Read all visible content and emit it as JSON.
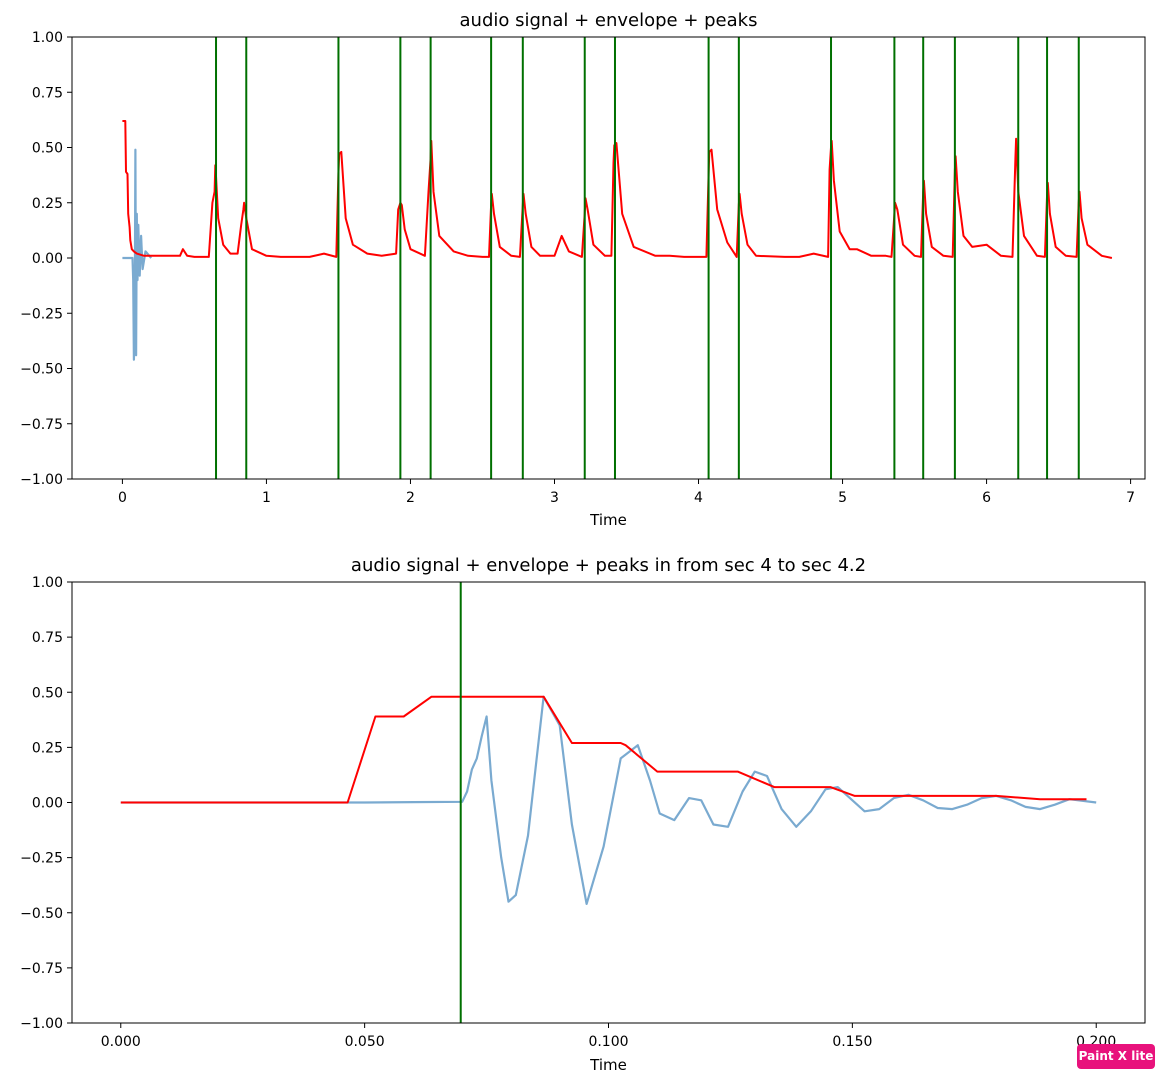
{
  "watermark": "Paint X lite",
  "chart_data": [
    {
      "type": "line",
      "title": "audio signal + envelope + peaks",
      "xlabel": "Time",
      "ylabel": "",
      "xlim": [
        -0.35,
        7.1
      ],
      "ylim": [
        -1.0,
        1.0
      ],
      "xticks": [
        0,
        1,
        2,
        3,
        4,
        5,
        6,
        7
      ],
      "xtick_labels": [
        "0",
        "1",
        "2",
        "3",
        "4",
        "5",
        "6",
        "7"
      ],
      "yticks": [
        1.0,
        0.75,
        0.5,
        0.25,
        0.0,
        -0.25,
        -0.5,
        -0.75,
        -1.0
      ],
      "ytick_labels": [
        "1.00",
        "0.75",
        "0.50",
        "0.25",
        "0.00",
        "−0.25",
        "−0.50",
        "−0.75",
        "−1.00"
      ],
      "grid": false,
      "colors": {
        "signal": "#7aaad0",
        "envelope": "#ff0000",
        "peaks": "#007000"
      },
      "series": [
        {
          "role": "signal",
          "x": [
            0.0,
            0.05,
            0.07,
            0.075,
            0.08,
            0.085,
            0.09,
            0.095,
            0.1,
            0.105,
            0.11,
            0.12,
            0.13,
            0.14,
            0.16,
            0.2
          ],
          "y": [
            0.0,
            0.0,
            0.0,
            -0.1,
            -0.46,
            -0.3,
            0.49,
            -0.44,
            0.2,
            -0.1,
            0.15,
            -0.08,
            0.1,
            -0.05,
            0.03,
            0.0
          ]
        },
        {
          "role": "envelope",
          "x": [
            0.0,
            0.02,
            0.025,
            0.035,
            0.04,
            0.05,
            0.055,
            0.065,
            0.08,
            0.1,
            0.15,
            0.2,
            0.3,
            0.4,
            0.42,
            0.45,
            0.5,
            0.6,
            0.625,
            0.64,
            0.645,
            0.65,
            0.665,
            0.7,
            0.75,
            0.8,
            0.825,
            0.84,
            0.845,
            0.86,
            0.9,
            1.0,
            1.1,
            1.2,
            1.3,
            1.4,
            1.485,
            1.5,
            1.505,
            1.52,
            1.55,
            1.6,
            1.7,
            1.8,
            1.9,
            1.915,
            1.93,
            1.94,
            1.96,
            2.0,
            2.1,
            2.125,
            2.14,
            2.145,
            2.16,
            2.2,
            2.3,
            2.4,
            2.5,
            2.545,
            2.56,
            2.565,
            2.58,
            2.62,
            2.7,
            2.76,
            2.78,
            2.785,
            2.8,
            2.84,
            2.9,
            3.0,
            3.05,
            3.1,
            3.19,
            3.21,
            3.215,
            3.23,
            3.27,
            3.35,
            3.395,
            3.41,
            3.415,
            3.43,
            3.47,
            3.55,
            3.7,
            3.8,
            3.9,
            4.0,
            4.055,
            4.07,
            4.075,
            4.09,
            4.13,
            4.2,
            4.265,
            4.28,
            4.285,
            4.3,
            4.34,
            4.4,
            4.6,
            4.7,
            4.8,
            4.9,
            4.91,
            4.92,
            4.925,
            4.94,
            4.98,
            5.05,
            5.1,
            5.2,
            5.3,
            5.34,
            5.36,
            5.365,
            5.38,
            5.42,
            5.5,
            5.545,
            5.56,
            5.565,
            5.58,
            5.62,
            5.7,
            5.765,
            5.78,
            5.785,
            5.8,
            5.84,
            5.9,
            6.0,
            6.1,
            6.18,
            6.2,
            6.205,
            6.22,
            6.26,
            6.35,
            6.405,
            6.42,
            6.425,
            6.44,
            6.48,
            6.55,
            6.625,
            6.64,
            6.645,
            6.66,
            6.7,
            6.8,
            6.87
          ],
          "y": [
            0.62,
            0.62,
            0.39,
            0.38,
            0.2,
            0.14,
            0.08,
            0.04,
            0.03,
            0.02,
            0.01,
            0.01,
            0.01,
            0.01,
            0.04,
            0.01,
            0.005,
            0.005,
            0.25,
            0.3,
            0.42,
            0.37,
            0.18,
            0.06,
            0.02,
            0.02,
            0.15,
            0.22,
            0.25,
            0.18,
            0.04,
            0.01,
            0.005,
            0.005,
            0.005,
            0.02,
            0.005,
            0.38,
            0.47,
            0.48,
            0.18,
            0.06,
            0.02,
            0.01,
            0.02,
            0.22,
            0.25,
            0.24,
            0.13,
            0.04,
            0.01,
            0.3,
            0.45,
            0.53,
            0.3,
            0.1,
            0.03,
            0.01,
            0.005,
            0.005,
            0.24,
            0.29,
            0.2,
            0.05,
            0.01,
            0.005,
            0.24,
            0.29,
            0.2,
            0.05,
            0.01,
            0.01,
            0.1,
            0.03,
            0.005,
            0.2,
            0.27,
            0.22,
            0.06,
            0.01,
            0.01,
            0.43,
            0.51,
            0.52,
            0.2,
            0.05,
            0.01,
            0.01,
            0.005,
            0.005,
            0.005,
            0.38,
            0.48,
            0.49,
            0.22,
            0.07,
            0.005,
            0.24,
            0.29,
            0.2,
            0.06,
            0.01,
            0.005,
            0.005,
            0.02,
            0.005,
            0.4,
            0.5,
            0.53,
            0.35,
            0.12,
            0.04,
            0.04,
            0.01,
            0.01,
            0.005,
            0.2,
            0.25,
            0.22,
            0.06,
            0.01,
            0.005,
            0.3,
            0.35,
            0.2,
            0.05,
            0.01,
            0.005,
            0.4,
            0.46,
            0.3,
            0.1,
            0.05,
            0.06,
            0.01,
            0.005,
            0.45,
            0.54,
            0.3,
            0.1,
            0.01,
            0.005,
            0.29,
            0.34,
            0.2,
            0.05,
            0.01,
            0.005,
            0.25,
            0.3,
            0.18,
            0.06,
            0.01,
            0.0
          ]
        }
      ],
      "peaks": [
        0.65,
        0.86,
        1.5,
        1.93,
        2.14,
        2.56,
        2.78,
        3.21,
        3.42,
        4.07,
        4.28,
        4.92,
        5.36,
        5.56,
        5.78,
        6.22,
        6.42,
        6.64
      ]
    },
    {
      "type": "line",
      "title": "audio signal + envelope + peaks in from sec 4 to sec 4.2",
      "xlabel": "Time",
      "ylabel": "",
      "xlim": [
        -0.01,
        0.21
      ],
      "ylim": [
        -1.0,
        1.0
      ],
      "xticks": [
        0.0,
        0.05,
        0.1,
        0.15,
        0.2
      ],
      "xtick_labels": [
        "0.000",
        "0.050",
        "0.100",
        "0.150",
        "0.200"
      ],
      "yticks": [
        1.0,
        0.75,
        0.5,
        0.25,
        0.0,
        -0.25,
        -0.5,
        -0.75,
        -1.0
      ],
      "ytick_labels": [
        "1.00",
        "0.75",
        "0.50",
        "0.25",
        "0.00",
        "−0.25",
        "−0.50",
        "−0.75",
        "−1.00"
      ],
      "grid": false,
      "colors": {
        "signal": "#7aaad0",
        "envelope": "#ff0000",
        "peaks": "#007000"
      },
      "series": [
        {
          "role": "signal",
          "x": [
            0.0,
            0.05,
            0.06,
            0.07,
            0.071,
            0.072,
            0.073,
            0.074,
            0.075,
            0.076,
            0.078,
            0.0795,
            0.081,
            0.0835,
            0.0867,
            0.09,
            0.0925,
            0.0955,
            0.099,
            0.1025,
            0.106,
            0.1085,
            0.1105,
            0.1135,
            0.1165,
            0.119,
            0.1215,
            0.1245,
            0.1275,
            0.13,
            0.1325,
            0.1355,
            0.1385,
            0.1415,
            0.1445,
            0.147,
            0.1495,
            0.1525,
            0.1555,
            0.1585,
            0.1615,
            0.1645,
            0.1675,
            0.1705,
            0.1735,
            0.1765,
            0.1795,
            0.1825,
            0.1855,
            0.1885,
            0.1915,
            0.1945,
            0.2
          ],
          "y": [
            0.0,
            0.0,
            0.002,
            0.003,
            0.05,
            0.15,
            0.2,
            0.3,
            0.39,
            0.1,
            -0.25,
            -0.45,
            -0.42,
            -0.15,
            0.48,
            0.35,
            -0.1,
            -0.46,
            -0.2,
            0.2,
            0.26,
            0.1,
            -0.05,
            -0.08,
            0.02,
            0.01,
            -0.1,
            -0.11,
            0.05,
            0.14,
            0.12,
            -0.03,
            -0.11,
            -0.04,
            0.06,
            0.07,
            0.02,
            -0.04,
            -0.03,
            0.02,
            0.035,
            0.01,
            -0.025,
            -0.03,
            -0.01,
            0.02,
            0.03,
            0.01,
            -0.02,
            -0.03,
            -0.01,
            0.015,
            0.0
          ]
        },
        {
          "role": "envelope",
          "x": [
            0.0,
            0.0465,
            0.0465,
            0.0522,
            0.058,
            0.0637,
            0.0867,
            0.0925,
            0.1025,
            0.1035,
            0.11,
            0.1265,
            0.134,
            0.1455,
            0.1505,
            0.1695,
            0.1795,
            0.1885,
            0.198
          ],
          "y": [
            0.0,
            0.0,
            0.0,
            0.39,
            0.39,
            0.48,
            0.48,
            0.27,
            0.27,
            0.26,
            0.14,
            0.14,
            0.07,
            0.07,
            0.03,
            0.03,
            0.03,
            0.015,
            0.015
          ]
        }
      ],
      "peaks": [
        0.0697
      ]
    }
  ]
}
